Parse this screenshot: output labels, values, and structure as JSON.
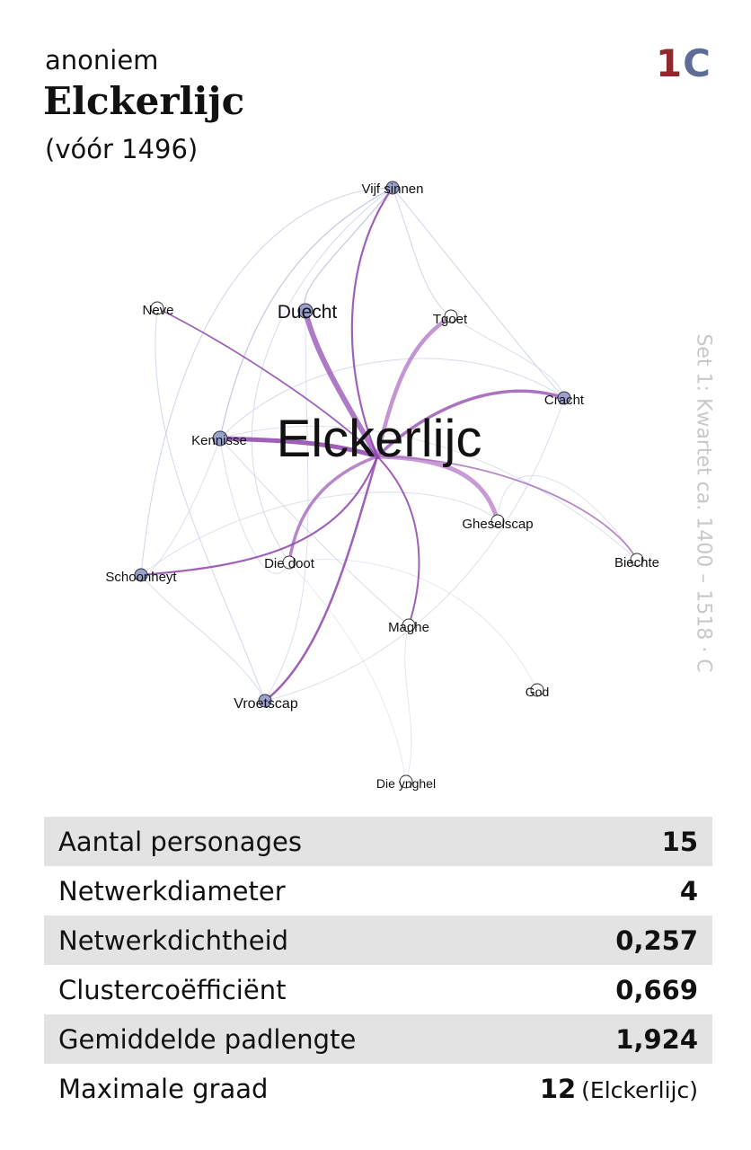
{
  "header": {
    "author": "anoniem",
    "title": "Elckerlijc",
    "year": "(vóór 1496)",
    "badge_number": "1",
    "badge_letter": "C"
  },
  "side_label": "Set 1: Kwartet ca. 1400 – 1518 · C",
  "colors": {
    "badge_number": "#8e2a2e",
    "badge_letter": "#5e6d97",
    "strong_edge": "#9b59b6",
    "weak_edge": "#a9b4dc",
    "node_fill": "#9aa0cf",
    "stats_shade": "#e3e3e3"
  },
  "network": {
    "nodes": [
      {
        "id": "elckerlijc",
        "label": "Elckerlijc"
      },
      {
        "id": "vijf_sinnen",
        "label": "Vijf sinnen"
      },
      {
        "id": "neve",
        "label": "Neve"
      },
      {
        "id": "duecht",
        "label": "Duecht"
      },
      {
        "id": "tgoet",
        "label": "Tgoet"
      },
      {
        "id": "cracht",
        "label": "Cracht"
      },
      {
        "id": "kennisse",
        "label": "Kennisse"
      },
      {
        "id": "gheselscap",
        "label": "Gheselscap"
      },
      {
        "id": "biechte",
        "label": "Biechte"
      },
      {
        "id": "schoonheyt",
        "label": "Schoonheyt"
      },
      {
        "id": "die_doot",
        "label": "Die doot"
      },
      {
        "id": "maghe",
        "label": "Maghe"
      },
      {
        "id": "god",
        "label": "God"
      },
      {
        "id": "vroetscap",
        "label": "Vroetscap"
      },
      {
        "id": "die_ynghel",
        "label": "Die ynghel"
      }
    ]
  },
  "stats": [
    {
      "label": "Aantal personages",
      "value": "15",
      "extra": ""
    },
    {
      "label": "Netwerkdiameter",
      "value": "4",
      "extra": ""
    },
    {
      "label": "Netwerkdichtheid",
      "value": "0,257",
      "extra": ""
    },
    {
      "label": "Clustercoëfficiënt",
      "value": "0,669",
      "extra": ""
    },
    {
      "label": "Gemiddelde padlengte",
      "value": "1,924",
      "extra": ""
    },
    {
      "label": "Maximale graad",
      "value": "12",
      "extra": "(Elckerlijc)"
    }
  ]
}
